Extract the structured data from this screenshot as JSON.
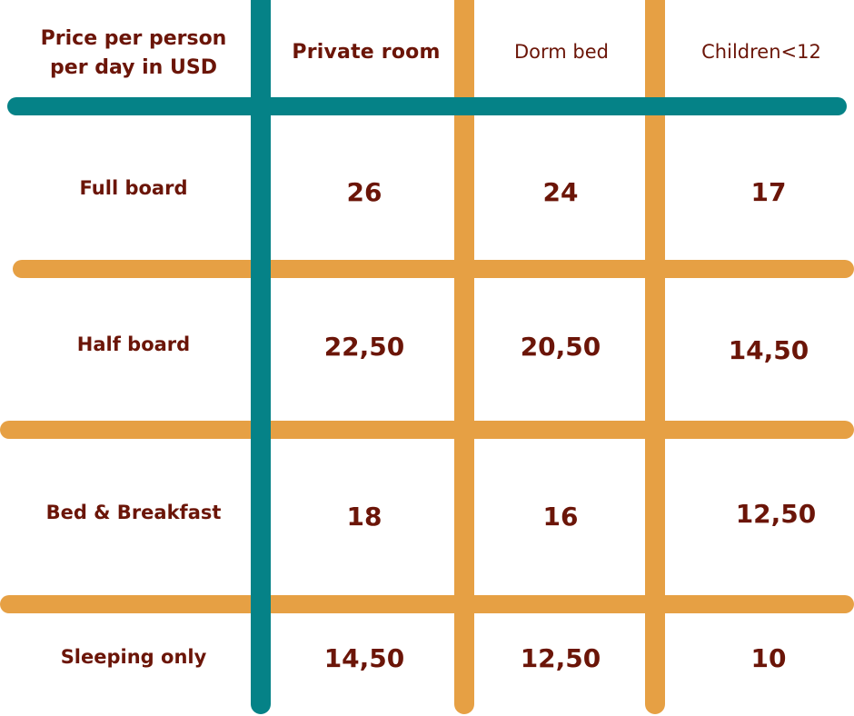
{
  "table": {
    "corner_header": [
      "Price per person",
      "per day in USD"
    ],
    "columns": [
      "Private room",
      "Dorm bed",
      "Children<12"
    ],
    "rows": [
      {
        "label": "Full board",
        "values": [
          "26",
          "24",
          "17"
        ]
      },
      {
        "label": "Half board",
        "values": [
          "22,50",
          "20,50",
          "14,50"
        ]
      },
      {
        "label": "Bed & Breakfast",
        "values": [
          "18",
          "16",
          "12,50"
        ]
      },
      {
        "label": "Sleeping only",
        "values": [
          "14,50",
          "12,50",
          "10"
        ]
      }
    ]
  },
  "colors": {
    "teal_line": "#058287",
    "orange_line": "#e6a044",
    "text": "#6b1508"
  }
}
